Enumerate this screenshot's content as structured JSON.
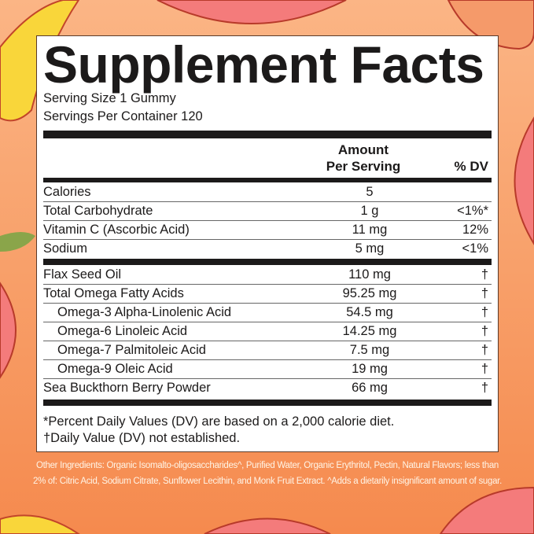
{
  "title": "Supplement Facts",
  "serving_size": "Serving Size 1 Gummy",
  "servings_per_container": "Servings Per Container 120",
  "header": {
    "amount_line1": "Amount",
    "amount_line2": "Per Serving",
    "dv": "% DV"
  },
  "group1": [
    {
      "name": "Calories",
      "amount": "5",
      "dv": ""
    },
    {
      "name": "Total Carbohydrate",
      "amount": "1 g",
      "dv": "<1%*"
    },
    {
      "name": "Vitamin C (Ascorbic Acid)",
      "amount": "11 mg",
      "dv": "12%"
    },
    {
      "name": "Sodium",
      "amount": "5 mg",
      "dv": "<1%"
    }
  ],
  "group2": [
    {
      "name": "Flax Seed Oil",
      "amount": "110 mg",
      "dv": "†"
    },
    {
      "name": "Total Omega Fatty Acids",
      "amount": "95.25 mg",
      "dv": "†"
    },
    {
      "name": "Omega-3 Alpha-Linolenic Acid",
      "amount": "54.5 mg",
      "dv": "†"
    },
    {
      "name": "Omega-6 Linoleic Acid",
      "amount": "14.25 mg",
      "dv": "†"
    },
    {
      "name": "Omega-7 Palmitoleic Acid",
      "amount": "7.5 mg",
      "dv": "†"
    },
    {
      "name": "Omega-9 Oleic Acid",
      "amount": "19 mg",
      "dv": "†"
    },
    {
      "name": "Sea Buckthorn Berry Powder",
      "amount": "66 mg",
      "dv": "†"
    }
  ],
  "footnotes": [
    "*Percent Daily Values (DV) are based on a 2,000 calorie diet.",
    "†Daily Value (DV) not established."
  ],
  "other_ingredients": "Other Ingredients: Organic Isomalto-oligosaccharides^, Purified Water, Organic Erythritol, Pectin, Natural Flavors; less than 2% of: Citric Acid, Sodium Citrate, Sunflower Lecithin, and Monk Fruit Extract. ^Adds a dietarily insignificant amount of sugar.",
  "colors": {
    "background": "#f8a06a",
    "label": "#ffffff",
    "text": "#1c1a1a",
    "other_text": "#fff4e6"
  }
}
